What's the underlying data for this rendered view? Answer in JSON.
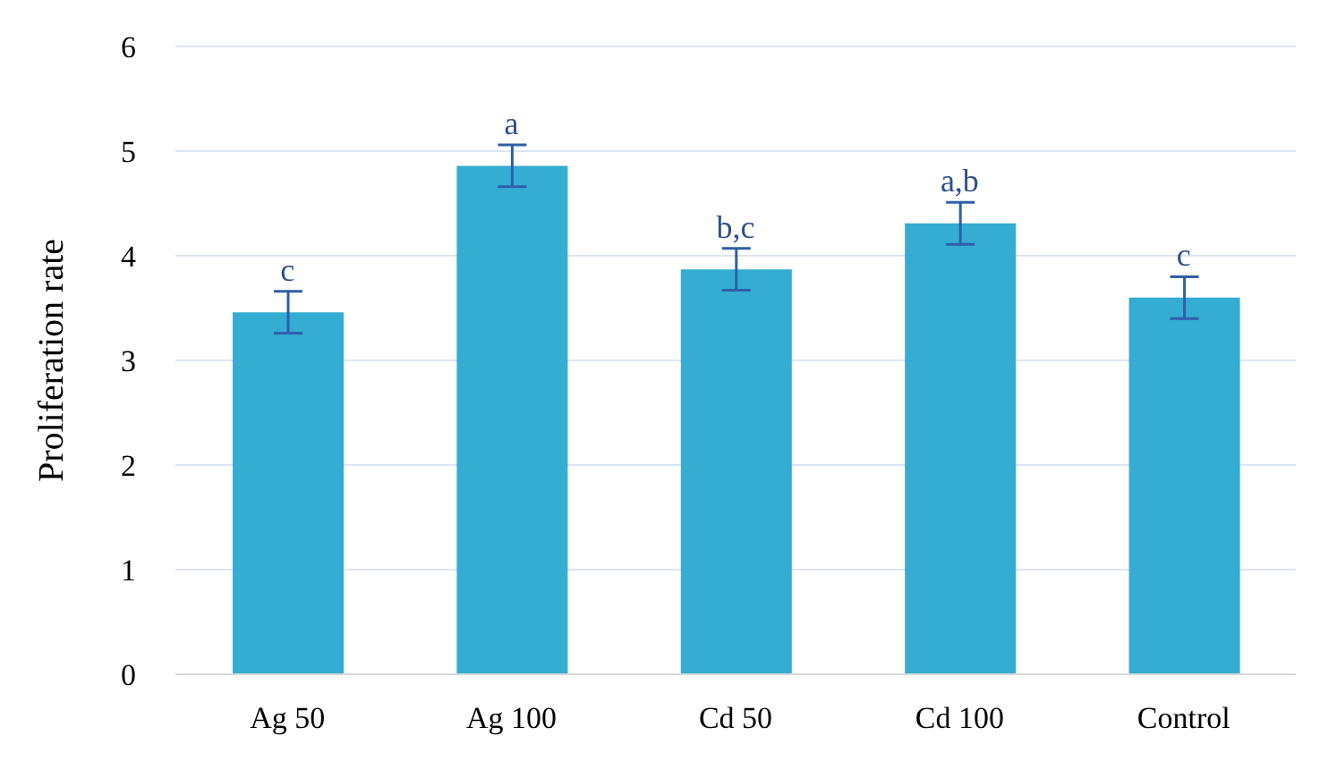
{
  "chart_data": {
    "type": "bar",
    "ylabel": "Proliferation rate",
    "categories": [
      "Ag 50",
      "Ag 100",
      "Cd 50",
      "Cd 100",
      "Control"
    ],
    "values": [
      3.46,
      4.86,
      3.87,
      4.31,
      3.6
    ],
    "errors": [
      0.2,
      0.2,
      0.2,
      0.2,
      0.2
    ],
    "color": "#35acd2",
    "ylim": [
      0,
      6
    ],
    "yticks": [
      0,
      1,
      2,
      3,
      4,
      5,
      6
    ],
    "grid": "y",
    "legend": false,
    "annotations": [
      {
        "text": "c",
        "x": "Ag 50",
        "y": 3.66
      },
      {
        "text": "a",
        "x": "Ag 100",
        "y": 5.06
      },
      {
        "text": "b,c",
        "x": "Cd 50",
        "y": 4.07
      },
      {
        "text": "a,b",
        "x": "Cd 100",
        "y": 4.51
      },
      {
        "text": "c",
        "x": "Control",
        "y": 3.8
      }
    ]
  }
}
